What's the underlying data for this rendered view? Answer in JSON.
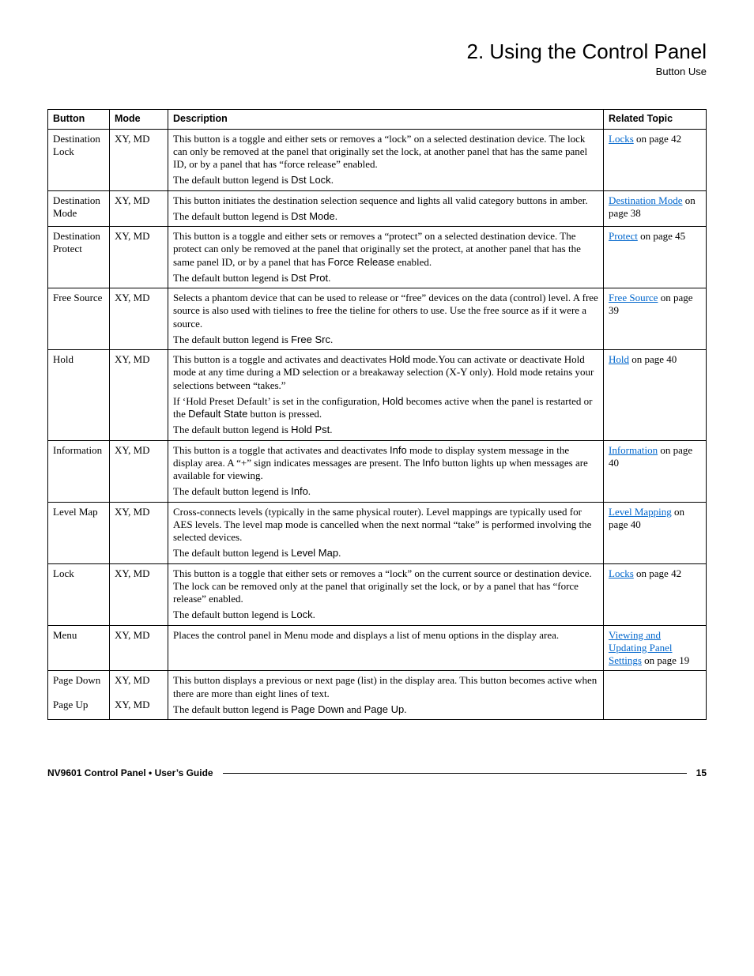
{
  "header": {
    "title": "2. Using the Control Panel",
    "subtitle": "Button Use"
  },
  "table": {
    "columns": [
      "Button",
      "Mode",
      "Description",
      "Related Topic"
    ],
    "rows": [
      {
        "button": "Destination Lock",
        "mode": "XY, MD",
        "desc_html": "<p>This button is a toggle and either sets or removes a “lock” on a selected destination device. The lock can only be removed at the panel that originally set the lock, at another panel that has the same panel ID, or by a panel that has “force release” enabled.</p><p>The default button legend is <span class='legend'>Dst Lock</span>.</p>",
        "topic_html": "<a href='#'>Locks</a> on page 42"
      },
      {
        "button": "Destination Mode",
        "mode": "XY, MD",
        "desc_html": "<p>This button initiates the destination selection sequence and lights all valid category buttons in amber.</p><p>The default button legend is <span class='legend'>Dst Mode</span>.</p>",
        "topic_html": "<a href='#'>Destination Mode</a> on page 38"
      },
      {
        "button": "Destination Protect",
        "mode": "XY, MD",
        "desc_html": "<p>This button is a toggle and either sets or removes a “protect” on a selected destination device. The protect can only be removed at the panel that originally set the protect, at another panel that has the same panel ID, or by a panel that has <span class='legend'>Force Release</span> enabled.</p><p>The default button legend is <span class='legend'>Dst Prot</span>.</p>",
        "topic_html": "<a href='#'>Protect</a> on page 45"
      },
      {
        "button": "Free Source",
        "mode": "XY, MD",
        "desc_html": "<p>Selects a phantom device that can be used to release or “free” devices on the data (control) level. A free source is also used with tielines to free the tieline for others to use. Use the free source as if it were a source.</p><p>The default button legend is <span class='legend'>Free Src</span>.</p>",
        "topic_html": "<a href='#'>Free Source</a> on page 39"
      },
      {
        "button": "Hold",
        "mode": "XY, MD",
        "desc_html": "<p>This button is a toggle and activates and deactivates <span class='legend'>Hold</span> mode.You can activate or deactivate Hold mode at any time during a MD selection or a breakaway selection (X-Y only). Hold mode retains your selections between “takes.”</p><p>If ‘Hold Preset Default’ is set in the configuration, <span class='legend'>Hold</span> becomes active when the panel is restarted or the <span class='legend'>Default State</span> button is pressed.</p><p>The default button legend is <span class='legend'>Hold Pst</span>.</p>",
        "topic_html": "<a href='#'>Hold</a> on page 40"
      },
      {
        "button": "Information",
        "mode": "XY, MD",
        "desc_html": "<p>This button is a toggle that activates and deactivates <span class='legend'>Info</span> mode to display system message in the display area. A “+” sign indicates messages are present. The <span class='legend'>Info</span> button lights up when messages are available for viewing.</p><p>The default button legend is <span class='legend'>Info</span>.</p>",
        "topic_html": "<a href='#'>Information</a> on page 40"
      },
      {
        "button": "Level Map",
        "mode": "XY, MD",
        "desc_html": "<p>Cross-connects levels (typically in the same physical router). Level mappings are typically used for AES levels. The level map mode is cancelled when the next normal “take” is performed involving the selected devices.</p><p>The default button legend is <span class='legend'>Level Map</span>.</p>",
        "topic_html": "<a href='#'>Level Mapping</a> on page 40"
      },
      {
        "button": "Lock",
        "mode": "XY, MD",
        "desc_html": "<p>This button is a toggle that either sets or removes a “lock” on the current source or destination device. The lock can be removed only at the panel that originally set the lock, or by a panel that has “force release” enabled.</p><p>The default button legend is <span class='legend'>Lock</span>.</p>",
        "topic_html": "<a href='#'>Locks</a> on page 42"
      },
      {
        "button": "Menu",
        "mode": "XY, MD",
        "desc_html": "<p>Places the control panel in Menu mode and displays a list of menu options in the display area.</p>",
        "topic_html": "<a href='#'>Viewing and Updating Panel Settings</a> on page 19"
      }
    ],
    "pagerows": {
      "down": {
        "button": "Page Down",
        "mode": "XY, MD"
      },
      "up": {
        "button": "Page Up",
        "mode": "XY, MD"
      },
      "desc_html": "<p>This button displays a previous or next page (list) in the display area. This button becomes active when there are more than eight lines of text.</p><p>The default button legend is <span class='legend'>Page Down</span> and <span class='legend'>Page Up</span>.</p>"
    }
  },
  "footer": {
    "left": "NV9601 Control Panel • User’s Guide",
    "page": "15"
  }
}
